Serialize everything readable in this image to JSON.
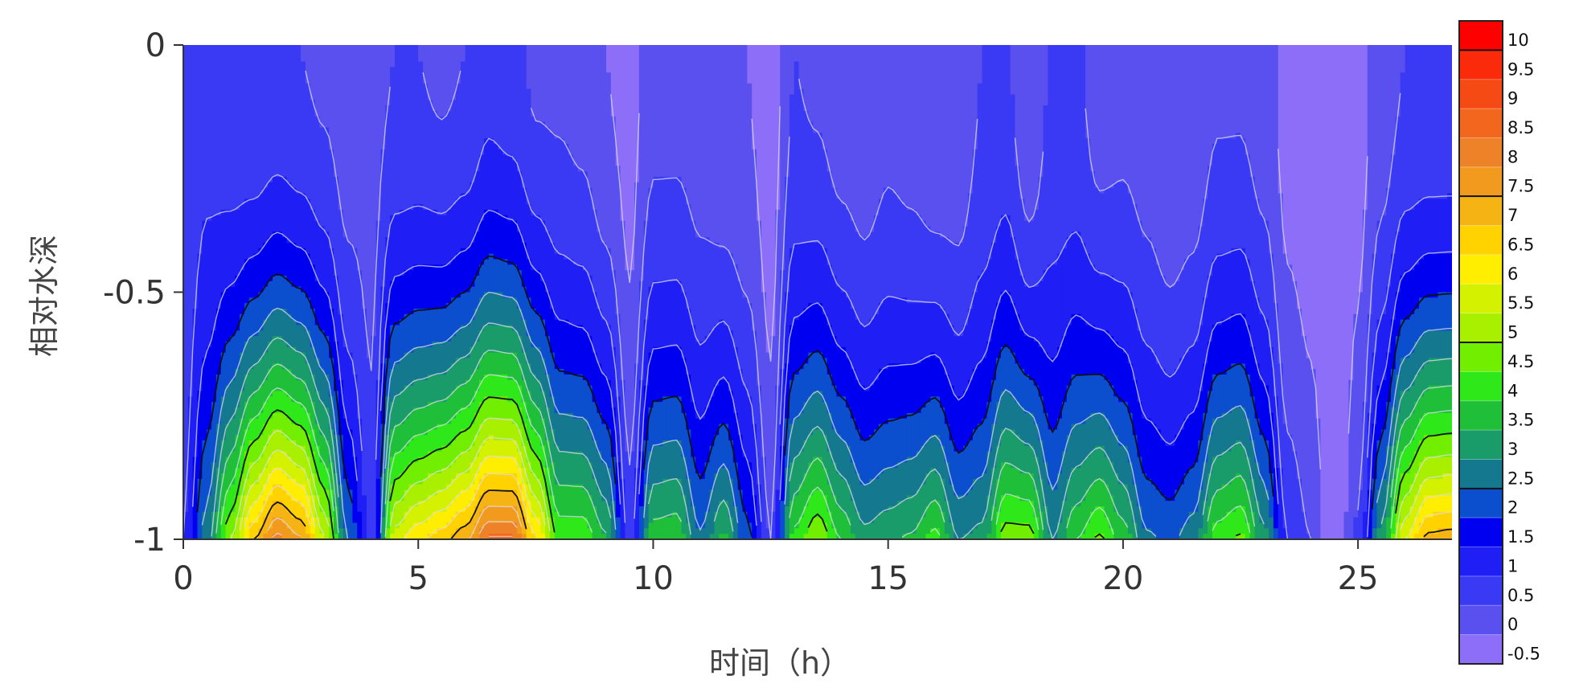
{
  "chart_data": {
    "type": "heatmap",
    "subtype": "filled-contour",
    "xlabel": "时间（h）",
    "ylabel": "相对水深",
    "xlim": [
      0,
      27
    ],
    "ylim": [
      -1,
      0
    ],
    "x_ticks": [
      "0",
      "5",
      "10",
      "15",
      "20",
      "25"
    ],
    "y_ticks": [
      "0",
      "-0.5",
      "-1"
    ],
    "colorbar": {
      "labels": [
        "10",
        "9.5",
        "9",
        "8.5",
        "8",
        "7.5",
        "7",
        "6.5",
        "6",
        "5.5",
        "5",
        "4.5",
        "4",
        "3.5",
        "3",
        "2.5",
        "2",
        "1.5",
        "1",
        "0.5",
        "0",
        "-0.5"
      ],
      "colors": [
        "#ff0000",
        "#fa2a0a",
        "#f64a14",
        "#f2661e",
        "#ee8228",
        "#f29a1e",
        "#f6b414",
        "#ffd200",
        "#ffee00",
        "#d4f200",
        "#a8f000",
        "#72ee00",
        "#2ee81a",
        "#1fbf3a",
        "#1a9c6a",
        "#14788e",
        "#0b4fcf",
        "#0000f0",
        "#1e1ef5",
        "#3a3af5",
        "#5a50f0",
        "#8c6ef8"
      ],
      "black_contour_levels": [
        2,
        4.5,
        7,
        9.5
      ]
    },
    "depth_profile": {
      "x": [
        0,
        0.5,
        1,
        1.5,
        2,
        2.5,
        3,
        3.5,
        4,
        4.5,
        5,
        5.5,
        6,
        6.5,
        7,
        7.5,
        8,
        8.5,
        9,
        9.5,
        10,
        10.5,
        11,
        11.5,
        12,
        12.5,
        13,
        13.5,
        14,
        14.5,
        15,
        15.5,
        16,
        16.5,
        17,
        17.5,
        18,
        18.5,
        19,
        19.5,
        20,
        20.5,
        21,
        21.5,
        22,
        22.5,
        23,
        23.5,
        24,
        24.5,
        25,
        25.5,
        26,
        26.5,
        27
      ],
      "bottom_value": [
        1.0,
        2.8,
        5.0,
        7.0,
        8.2,
        7.6,
        5.6,
        2.5,
        0.8,
        5.8,
        6.4,
        6.8,
        7.4,
        8.6,
        8.6,
        6.6,
        4.4,
        4.4,
        3.6,
        0.8,
        3.8,
        3.9,
        2.6,
        3.6,
        2.2,
        0.5,
        4.2,
        5.0,
        4.0,
        3.2,
        3.4,
        3.6,
        4.2,
        3.0,
        3.2,
        4.8,
        4.8,
        3.0,
        4.0,
        4.6,
        3.8,
        2.6,
        2.4,
        2.8,
        4.3,
        4.6,
        3.2,
        1.0,
        0.5,
        -0.5,
        0.6,
        3.2,
        6.0,
        7.2,
        7.3
      ],
      "surface_value": [
        0.6,
        0.8,
        0.6,
        0.5,
        0.6,
        0.5,
        0.4,
        0.2,
        0.3,
        0.5,
        0.5,
        0.4,
        0.5,
        0.8,
        0.7,
        0.4,
        0.4,
        0.3,
        0.0,
        -0.2,
        0.3,
        0.3,
        0.2,
        0.0,
        0.0,
        -0.3,
        0.5,
        0.4,
        0.2,
        0.1,
        0.3,
        0.2,
        0.0,
        0.1,
        0.5,
        0.6,
        0.0,
        0.6,
        0.6,
        0.2,
        0.3,
        0.2,
        0.0,
        0.1,
        0.4,
        0.4,
        0.2,
        -0.2,
        -0.3,
        -0.5,
        -0.2,
        0.2,
        0.5,
        0.5,
        0.5
      ]
    }
  }
}
